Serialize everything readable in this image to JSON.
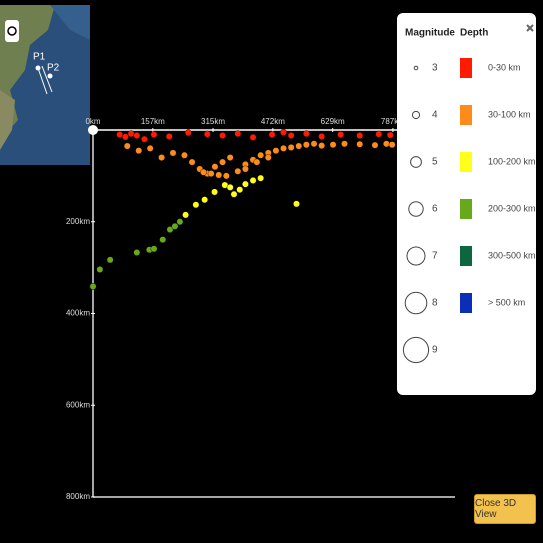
{
  "map": {
    "labels": [
      "P1",
      "P2"
    ]
  },
  "chart_data": {
    "type": "scatter",
    "xlim": [
      0,
      950
    ],
    "ylim": [
      0,
      800
    ],
    "y_inverted": true,
    "xticks": [
      {
        "value": 0,
        "label": "0km"
      },
      {
        "value": 157,
        "label": "157km"
      },
      {
        "value": 315,
        "label": "315km"
      },
      {
        "value": 472,
        "label": "472km"
      },
      {
        "value": 629,
        "label": "629km"
      },
      {
        "value": 787,
        "label": "787km"
      }
    ],
    "yticks": [
      {
        "value": 200,
        "label": "200km"
      },
      {
        "value": 400,
        "label": "400km"
      },
      {
        "value": 600,
        "label": "600km"
      },
      {
        "value": 800,
        "label": "800km"
      }
    ],
    "series": [
      {
        "name": "0-30 km",
        "color": "#ff1a00",
        "x": [
          70,
          85,
          100,
          115,
          135,
          160,
          200,
          250,
          300,
          340,
          380,
          420,
          470,
          500,
          520,
          560,
          600,
          650,
          700,
          750,
          780
        ],
        "values": [
          10,
          15,
          8,
          12,
          20,
          10,
          14,
          6,
          9,
          12,
          8,
          16,
          10,
          5,
          12,
          8,
          14,
          10,
          12,
          9,
          11
        ]
      },
      {
        "name": "30-100 km",
        "color": "#ff8c1a",
        "x": [
          90,
          120,
          150,
          180,
          210,
          240,
          260,
          280,
          300,
          320,
          340,
          360,
          380,
          400,
          420,
          440,
          460,
          480,
          500,
          520,
          540,
          560,
          580,
          600,
          630,
          660,
          700,
          740,
          770,
          785,
          350,
          330,
          310,
          290,
          400,
          430,
          460
        ],
        "values": [
          35,
          45,
          40,
          60,
          50,
          55,
          70,
          85,
          95,
          80,
          70,
          60,
          90,
          75,
          65,
          55,
          50,
          45,
          40,
          38,
          35,
          32,
          30,
          34,
          32,
          30,
          31,
          33,
          30,
          32,
          100,
          98,
          95,
          92,
          85,
          70,
          60
        ]
      },
      {
        "name": "100-200 km",
        "color": "#ffff1a",
        "x": [
          243,
          270,
          293,
          319,
          346,
          370,
          385,
          400,
          420,
          440,
          534,
          360
        ],
        "values": [
          185,
          163,
          152,
          135,
          120,
          140,
          130,
          118,
          110,
          105,
          161,
          125
        ]
      },
      {
        "name": "200-300 km",
        "color": "#66aa1a",
        "x": [
          0,
          18,
          45,
          115,
          148,
          160,
          183,
          202,
          215,
          228
        ],
        "values": [
          341,
          304,
          283,
          267,
          261,
          259,
          239,
          217,
          210,
          200
        ]
      },
      {
        "name": "300-500 km",
        "color": "#0d6640",
        "x": [],
        "values": []
      },
      {
        "name": "> 500 km",
        "color": "#0a2eb8",
        "x": [],
        "values": []
      }
    ],
    "legend": {
      "magnitude_title": "Magnitude",
      "depth_title": "Depth",
      "magnitudes": [
        3,
        4,
        5,
        6,
        7,
        8,
        9
      ]
    }
  },
  "button": "Close 3D View"
}
